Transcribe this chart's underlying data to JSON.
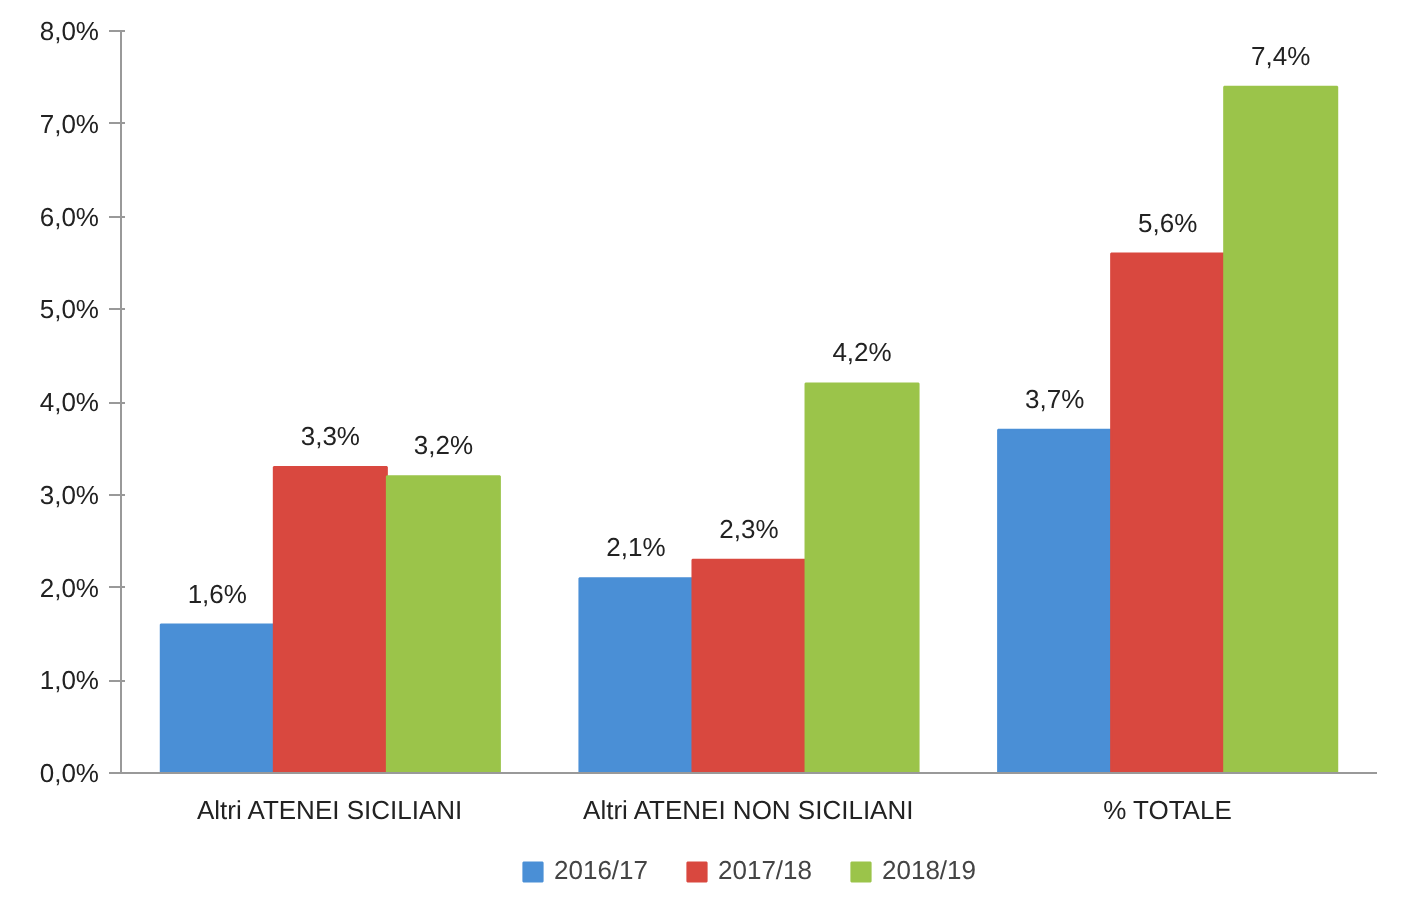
{
  "chart_data": {
    "type": "bar",
    "categories": [
      "Altri ATENEI SICILIANI",
      "Altri ATENEI NON SICILIANI",
      "% TOTALE"
    ],
    "series": [
      {
        "name": "2016/17",
        "color": "#4a8fd6",
        "values": [
          1.6,
          2.1,
          3.7
        ],
        "value_labels": [
          "1,6%",
          "2,1%",
          "3,7%"
        ]
      },
      {
        "name": "2017/18",
        "color": "#d9483f",
        "values": [
          3.3,
          2.3,
          5.6
        ],
        "value_labels": [
          "3,3%",
          "2,3%",
          "5,6%"
        ]
      },
      {
        "name": "2018/19",
        "color": "#9bc44a",
        "values": [
          3.2,
          4.2,
          7.4
        ],
        "value_labels": [
          "3,2%",
          "4,2%",
          "7,4%"
        ]
      }
    ],
    "ylim": [
      0,
      8
    ],
    "yticks": [
      {
        "value": 0,
        "label": "0,0%"
      },
      {
        "value": 1,
        "label": "1,0%"
      },
      {
        "value": 2,
        "label": "2,0%"
      },
      {
        "value": 3,
        "label": "3,0%"
      },
      {
        "value": 4,
        "label": "4,0%"
      },
      {
        "value": 5,
        "label": "5,0%"
      },
      {
        "value": 6,
        "label": "6,0%"
      },
      {
        "value": 7,
        "label": "7,0%"
      },
      {
        "value": 8,
        "label": "8,0%"
      }
    ],
    "grid": false,
    "legend": "bottom"
  }
}
